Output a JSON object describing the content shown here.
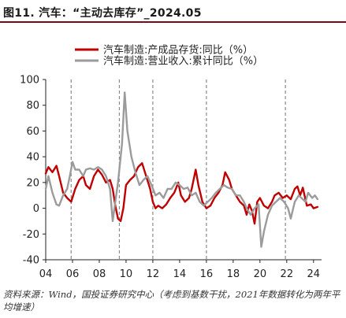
{
  "title": "图11. 汽车：“主动去库存”_2024.05",
  "source": "资料来源：Wind，国投证券研究中心（考虑到基数干扰，2021年数据转化为两年平均增速）",
  "colors": {
    "series1": "#c00000",
    "series2": "#9b9b9b",
    "accent": "#7a0a14"
  },
  "chart_data": {
    "type": "line",
    "x_tick_labels": [
      "04",
      "06",
      "08",
      "10",
      "12",
      "14",
      "16",
      "18",
      "20",
      "22",
      "24"
    ],
    "ylim": [
      -40,
      100
    ],
    "y_ticks": [
      -40,
      -20,
      0,
      20,
      40,
      60,
      80,
      100
    ],
    "grid": false,
    "legend_position": "top-right",
    "vlines_dashed_at": [
      2005.9,
      2009.5,
      2012.0,
      2016.0,
      2021.9
    ],
    "series": [
      {
        "name": "汽车制造:产成品存货:同比（%）",
        "color": "#c00000",
        "points": [
          [
            2004.0,
            27
          ],
          [
            2004.2,
            32
          ],
          [
            2004.5,
            28
          ],
          [
            2004.8,
            33
          ],
          [
            2005.0,
            25
          ],
          [
            2005.3,
            12
          ],
          [
            2005.6,
            8
          ],
          [
            2005.9,
            5
          ],
          [
            2006.2,
            15
          ],
          [
            2006.5,
            22
          ],
          [
            2006.8,
            25
          ],
          [
            2007.0,
            18
          ],
          [
            2007.3,
            15
          ],
          [
            2007.6,
            25
          ],
          [
            2007.9,
            30
          ],
          [
            2008.2,
            26
          ],
          [
            2008.5,
            20
          ],
          [
            2008.8,
            22
          ],
          [
            2009.0,
            15
          ],
          [
            2009.2,
            2
          ],
          [
            2009.4,
            -8
          ],
          [
            2009.6,
            -10
          ],
          [
            2009.8,
            0
          ],
          [
            2010.0,
            18
          ],
          [
            2010.3,
            22
          ],
          [
            2010.6,
            25
          ],
          [
            2010.9,
            32
          ],
          [
            2011.2,
            35
          ],
          [
            2011.5,
            25
          ],
          [
            2011.8,
            15
          ],
          [
            2012.0,
            5
          ],
          [
            2012.2,
            0
          ],
          [
            2012.4,
            2
          ],
          [
            2012.7,
            0
          ],
          [
            2013.0,
            3
          ],
          [
            2013.3,
            8
          ],
          [
            2013.6,
            12
          ],
          [
            2013.9,
            20
          ],
          [
            2014.1,
            10
          ],
          [
            2014.4,
            5
          ],
          [
            2014.7,
            8
          ],
          [
            2014.9,
            15
          ],
          [
            2015.2,
            30
          ],
          [
            2015.4,
            18
          ],
          [
            2015.7,
            5
          ],
          [
            2016.0,
            0
          ],
          [
            2016.3,
            2
          ],
          [
            2016.6,
            8
          ],
          [
            2016.9,
            12
          ],
          [
            2017.2,
            18
          ],
          [
            2017.4,
            28
          ],
          [
            2017.7,
            22
          ],
          [
            2017.9,
            15
          ],
          [
            2018.2,
            10
          ],
          [
            2018.5,
            5
          ],
          [
            2018.8,
            2
          ],
          [
            2019.0,
            -5
          ],
          [
            2019.2,
            3
          ],
          [
            2019.4,
            -2
          ],
          [
            2019.6,
            -12
          ],
          [
            2019.8,
            5
          ],
          [
            2020.0,
            8
          ],
          [
            2020.3,
            2
          ],
          [
            2020.6,
            0
          ],
          [
            2020.9,
            5
          ],
          [
            2021.1,
            10
          ],
          [
            2021.4,
            12
          ],
          [
            2021.7,
            8
          ],
          [
            2022.0,
            10
          ],
          [
            2022.3,
            7
          ],
          [
            2022.6,
            15
          ],
          [
            2022.8,
            17
          ],
          [
            2023.0,
            10
          ],
          [
            2023.2,
            16
          ],
          [
            2023.5,
            2
          ],
          [
            2023.8,
            3
          ],
          [
            2024.0,
            0
          ],
          [
            2024.3,
            1
          ]
        ]
      },
      {
        "name": "汽车制造:营业收入:累计同比（%）",
        "color": "#9b9b9b",
        "points": [
          [
            2004.0,
            15
          ],
          [
            2004.2,
            25
          ],
          [
            2004.5,
            12
          ],
          [
            2004.8,
            3
          ],
          [
            2005.0,
            2
          ],
          [
            2005.3,
            10
          ],
          [
            2005.6,
            15
          ],
          [
            2005.8,
            25
          ],
          [
            2006.0,
            36
          ],
          [
            2006.2,
            30
          ],
          [
            2006.5,
            30
          ],
          [
            2006.8,
            25
          ],
          [
            2007.0,
            30
          ],
          [
            2007.3,
            31
          ],
          [
            2007.6,
            30
          ],
          [
            2007.9,
            32
          ],
          [
            2008.2,
            30
          ],
          [
            2008.5,
            25
          ],
          [
            2008.8,
            15
          ],
          [
            2009.0,
            -10
          ],
          [
            2009.2,
            5
          ],
          [
            2009.4,
            20
          ],
          [
            2009.7,
            50
          ],
          [
            2009.9,
            90
          ],
          [
            2010.1,
            60
          ],
          [
            2010.4,
            40
          ],
          [
            2010.7,
            28
          ],
          [
            2011.0,
            18
          ],
          [
            2011.3,
            22
          ],
          [
            2011.6,
            25
          ],
          [
            2011.9,
            18
          ],
          [
            2012.2,
            10
          ],
          [
            2012.5,
            12
          ],
          [
            2012.8,
            8
          ],
          [
            2013.1,
            15
          ],
          [
            2013.4,
            15
          ],
          [
            2013.7,
            20
          ],
          [
            2014.0,
            18
          ],
          [
            2014.3,
            15
          ],
          [
            2014.6,
            16
          ],
          [
            2014.9,
            10
          ],
          [
            2015.2,
            12
          ],
          [
            2015.5,
            5
          ],
          [
            2015.8,
            2
          ],
          [
            2016.1,
            5
          ],
          [
            2016.4,
            8
          ],
          [
            2016.7,
            12
          ],
          [
            2017.0,
            15
          ],
          [
            2017.3,
            18
          ],
          [
            2017.6,
            16
          ],
          [
            2017.9,
            15
          ],
          [
            2018.2,
            10
          ],
          [
            2018.5,
            10
          ],
          [
            2018.8,
            5
          ],
          [
            2019.0,
            0
          ],
          [
            2019.3,
            -5
          ],
          [
            2019.6,
            0
          ],
          [
            2019.9,
            3
          ],
          [
            2020.1,
            -30
          ],
          [
            2020.3,
            -18
          ],
          [
            2020.6,
            -5
          ],
          [
            2020.9,
            2
          ],
          [
            2021.2,
            5
          ],
          [
            2021.5,
            8
          ],
          [
            2021.8,
            5
          ],
          [
            2022.1,
            0
          ],
          [
            2022.3,
            -8
          ],
          [
            2022.6,
            5
          ],
          [
            2022.9,
            10
          ],
          [
            2023.1,
            8
          ],
          [
            2023.4,
            5
          ],
          [
            2023.6,
            12
          ],
          [
            2023.9,
            8
          ],
          [
            2024.1,
            10
          ],
          [
            2024.3,
            7
          ]
        ]
      }
    ]
  }
}
